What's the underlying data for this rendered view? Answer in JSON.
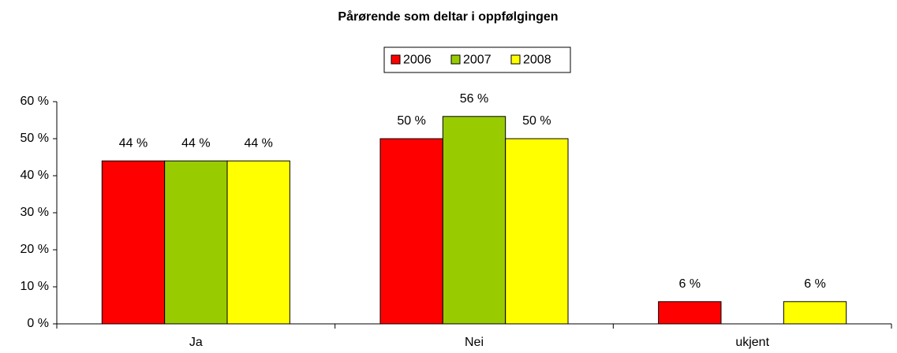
{
  "chart_data": {
    "type": "bar",
    "title": "Pårørende som deltar i oppfølgingen",
    "categories": [
      "Ja",
      "Nei",
      "ukjent"
    ],
    "series": [
      {
        "name": "2006",
        "color": "#ff0000",
        "values": [
          44,
          50,
          6
        ],
        "value_labels": [
          "44 %",
          "50 %",
          "6 %"
        ]
      },
      {
        "name": "2007",
        "color": "#99cc00",
        "values": [
          44,
          56,
          null
        ],
        "value_labels": [
          "44 %",
          "56 %",
          null
        ]
      },
      {
        "name": "2008",
        "color": "#ffff00",
        "values": [
          44,
          50,
          6
        ],
        "value_labels": [
          "44 %",
          "50 %",
          "6 %"
        ]
      }
    ],
    "ylim": [
      0,
      60
    ],
    "yticks": [
      {
        "value": 0,
        "label": "0 %"
      },
      {
        "value": 10,
        "label": "10 %"
      },
      {
        "value": 20,
        "label": "20 %"
      },
      {
        "value": 30,
        "label": "30 %"
      },
      {
        "value": 40,
        "label": "40 %"
      },
      {
        "value": 50,
        "label": "50 %"
      },
      {
        "value": 60,
        "label": "60 %"
      }
    ],
    "legend": "top",
    "grid": false
  }
}
